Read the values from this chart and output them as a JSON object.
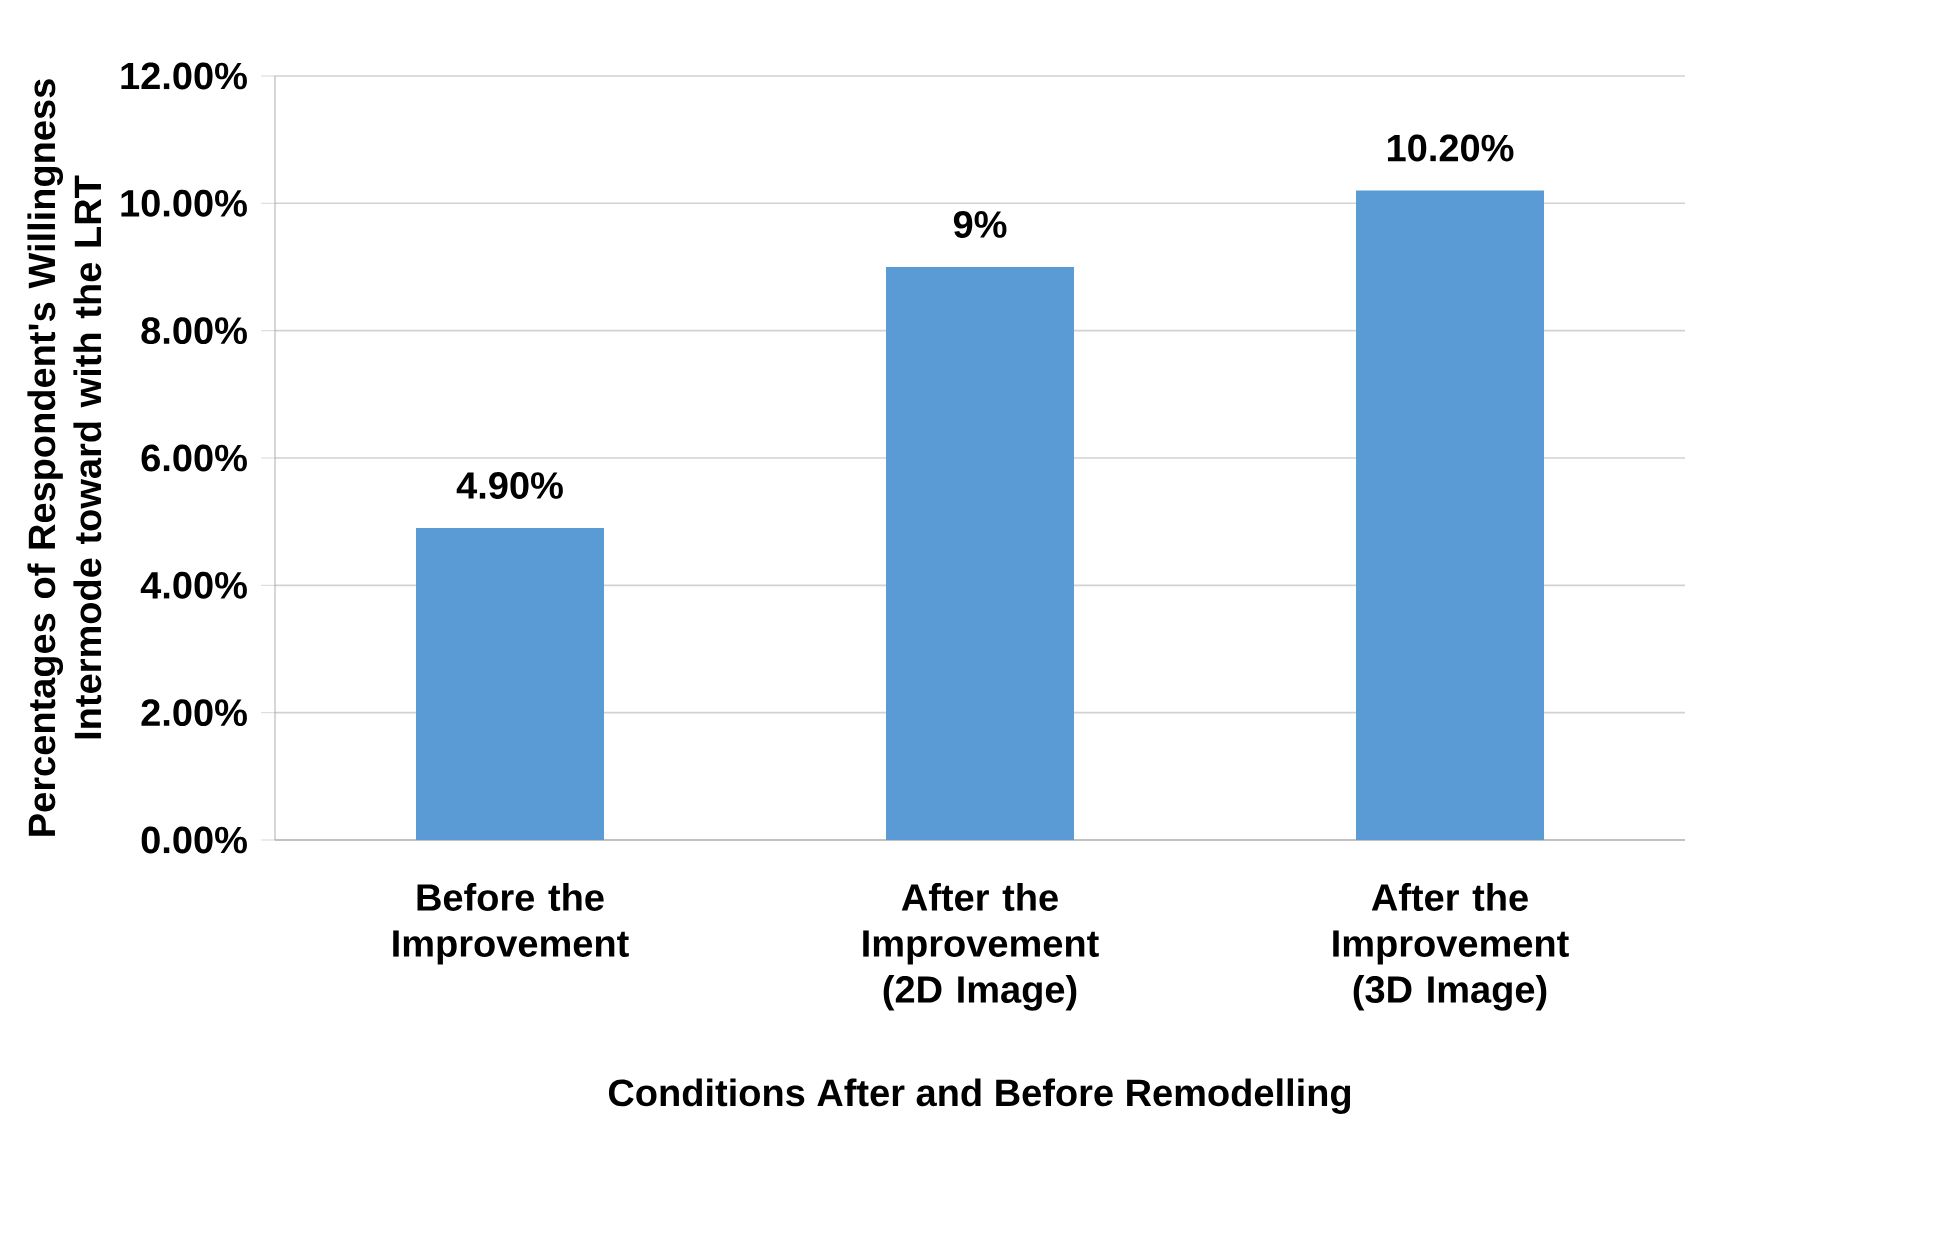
{
  "chart_data": {
    "type": "bar",
    "categories": [
      "Before the Improvement",
      "After the Improvement (2D Image)",
      "After the Improvement (3D Image)"
    ],
    "values": [
      4.9,
      9,
      10.2
    ],
    "value_labels": [
      "4.90%",
      "9%",
      "10.20%"
    ],
    "color": "#5b9bd5",
    "xlabel": "Conditions After and Before Remodelling",
    "ylabel": "Percentages of Respondent's Willingness Intermode toward with the LRT",
    "ylim": [
      0,
      12
    ],
    "yticks": [
      {
        "value": 0,
        "label": "0.00%"
      },
      {
        "value": 2,
        "label": "2.00%"
      },
      {
        "value": 4,
        "label": "4.00%"
      },
      {
        "value": 6,
        "label": "6.00%"
      },
      {
        "value": 8,
        "label": "8.00%"
      },
      {
        "value": 10,
        "label": "10.00%"
      },
      {
        "value": 12,
        "label": "12.00%"
      }
    ],
    "grid": "y"
  }
}
